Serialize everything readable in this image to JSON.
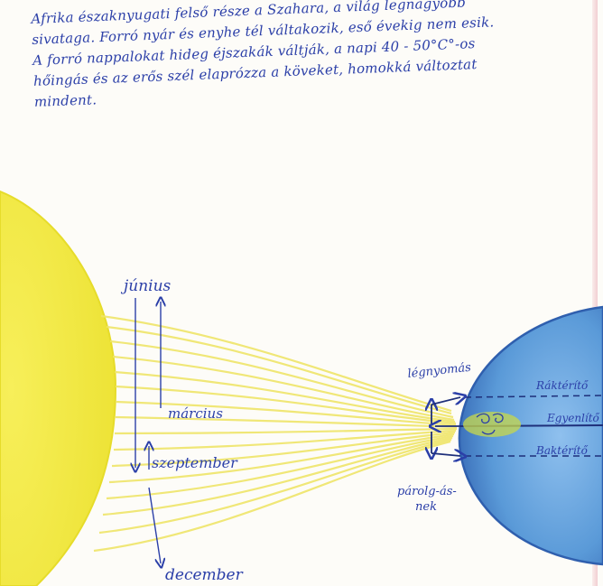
{
  "paragraph": {
    "lines": [
      "Afrika északnyugati felső része a Szahara, a világ legnagyobb",
      "sivataga. Forró nyár és enyhe tél váltakozik, eső évekig nem esik.",
      "A forró nappalokat hideg éjszakák váltják, a napi 40 - 50°C°-os",
      "hőingás és az erős szél elaprózza a köveket, homokká változtat",
      "mindent."
    ]
  },
  "diagram": {
    "months": {
      "june": "június",
      "march": "március",
      "september": "szeptember",
      "december": "december"
    },
    "zones": {
      "north_tropic": "Ráktérítő",
      "equator": "Egyenlítő",
      "south_tropic": "Baktérítő"
    },
    "arrows": {
      "air_rising": "légnyomás",
      "evaporation": "párolg-ás-"
    },
    "paragraph_side_note": "",
    "colors": {
      "sun": "#f2ea3a",
      "sun_edge": "#e6dc2a",
      "rays": "#f0e66a",
      "earth": "#5a9ad8",
      "earth_edge": "#2f5fae",
      "ink": "#2b3fa8",
      "desert_band": "#c8d84a"
    }
  }
}
